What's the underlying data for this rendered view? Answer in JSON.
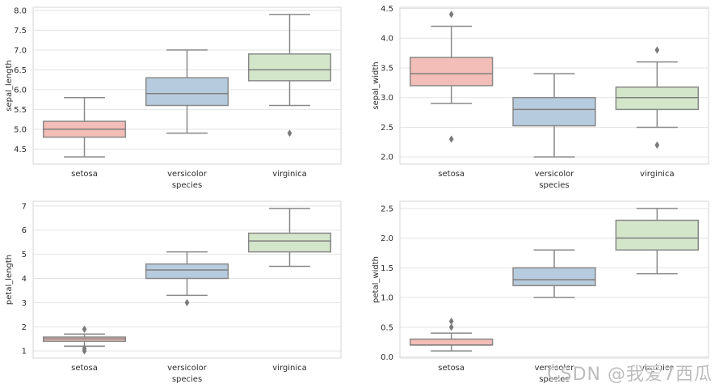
{
  "watermark": {
    "text": "CSDN @我爱7西瓜"
  },
  "palette": {
    "box_fills": [
      "#f3bdb8",
      "#b7cbde",
      "#d3e6ca"
    ],
    "box_edge": "#898989",
    "whisker": "#898989",
    "median": "#7f7f7f",
    "outlier": "#7a7a7a",
    "grid": "#e3e3e3",
    "spine": "#d4d4d4",
    "tick_text": "#2b2b2b",
    "label_text": "#2b2b2b",
    "background": "#ffffff"
  },
  "chart_data": [
    {
      "type": "box",
      "title": "",
      "ylabel": "sepal_length",
      "xlabel": "species",
      "categories": [
        "setosa",
        "versicolor",
        "virginica"
      ],
      "ylim": [
        4.12,
        8.08
      ],
      "yticks": [
        4.5,
        5.0,
        5.5,
        6.0,
        6.5,
        7.0,
        7.5,
        8.0
      ],
      "ytick_labels": [
        "4.5",
        "5.0",
        "5.5",
        "6.0",
        "6.5",
        "7.0",
        "7.5",
        "8.0"
      ],
      "grid": true,
      "series": [
        {
          "name": "setosa",
          "whislo": 4.3,
          "q1": 4.8,
          "med": 5.0,
          "q3": 5.2,
          "whishi": 5.8,
          "outliers": []
        },
        {
          "name": "versicolor",
          "whislo": 4.9,
          "q1": 5.6,
          "med": 5.9,
          "q3": 6.3,
          "whishi": 7.0,
          "outliers": []
        },
        {
          "name": "virginica",
          "whislo": 5.6,
          "q1": 6.225,
          "med": 6.5,
          "q3": 6.9,
          "whishi": 7.9,
          "outliers": [
            4.9
          ]
        }
      ]
    },
    {
      "type": "box",
      "title": "",
      "ylabel": "sepal_width",
      "xlabel": "species",
      "categories": [
        "setosa",
        "versicolor",
        "virginica"
      ],
      "ylim": [
        1.88,
        4.52
      ],
      "yticks": [
        2.0,
        2.5,
        3.0,
        3.5,
        4.0,
        4.5
      ],
      "ytick_labels": [
        "2.0",
        "2.5",
        "3.0",
        "3.5",
        "4.0",
        "4.5"
      ],
      "grid": true,
      "series": [
        {
          "name": "setosa",
          "whislo": 2.9,
          "q1": 3.2,
          "med": 3.4,
          "q3": 3.675,
          "whishi": 4.2,
          "outliers": [
            4.4,
            2.3
          ]
        },
        {
          "name": "versicolor",
          "whislo": 2.0,
          "q1": 2.525,
          "med": 2.8,
          "q3": 3.0,
          "whishi": 3.4,
          "outliers": []
        },
        {
          "name": "virginica",
          "whislo": 2.5,
          "q1": 2.8,
          "med": 3.0,
          "q3": 3.175,
          "whishi": 3.6,
          "outliers": [
            3.8,
            2.2
          ]
        }
      ]
    },
    {
      "type": "box",
      "title": "",
      "ylabel": "petal_length",
      "xlabel": "species",
      "categories": [
        "setosa",
        "versicolor",
        "virginica"
      ],
      "ylim": [
        0.705,
        7.195
      ],
      "yticks": [
        1,
        2,
        3,
        4,
        5,
        6,
        7
      ],
      "ytick_labels": [
        "1",
        "2",
        "3",
        "4",
        "5",
        "6",
        "7"
      ],
      "grid": true,
      "series": [
        {
          "name": "setosa",
          "whislo": 1.2,
          "q1": 1.4,
          "med": 1.5,
          "q3": 1.575,
          "whishi": 1.7,
          "outliers": [
            1.9,
            1.1,
            1.0
          ]
        },
        {
          "name": "versicolor",
          "whislo": 3.3,
          "q1": 4.0,
          "med": 4.35,
          "q3": 4.6,
          "whishi": 5.1,
          "outliers": [
            3.0
          ]
        },
        {
          "name": "virginica",
          "whislo": 4.5,
          "q1": 5.1,
          "med": 5.55,
          "q3": 5.875,
          "whishi": 6.9,
          "outliers": []
        }
      ]
    },
    {
      "type": "box",
      "title": "",
      "ylabel": "petal_width",
      "xlabel": "species",
      "categories": [
        "setosa",
        "versicolor",
        "virginica"
      ],
      "ylim": [
        -0.02,
        2.62
      ],
      "yticks": [
        0.0,
        0.5,
        1.0,
        1.5,
        2.0,
        2.5
      ],
      "ytick_labels": [
        "0.0",
        "0.5",
        "1.0",
        "1.5",
        "2.0",
        "2.5"
      ],
      "grid": true,
      "series": [
        {
          "name": "setosa",
          "whislo": 0.1,
          "q1": 0.2,
          "med": 0.2,
          "q3": 0.3,
          "whishi": 0.4,
          "outliers": [
            0.5,
            0.6
          ]
        },
        {
          "name": "versicolor",
          "whislo": 1.0,
          "q1": 1.2,
          "med": 1.3,
          "q3": 1.5,
          "whishi": 1.8,
          "outliers": []
        },
        {
          "name": "virginica",
          "whislo": 1.4,
          "q1": 1.8,
          "med": 2.0,
          "q3": 2.3,
          "whishi": 2.5,
          "outliers": []
        }
      ]
    }
  ]
}
